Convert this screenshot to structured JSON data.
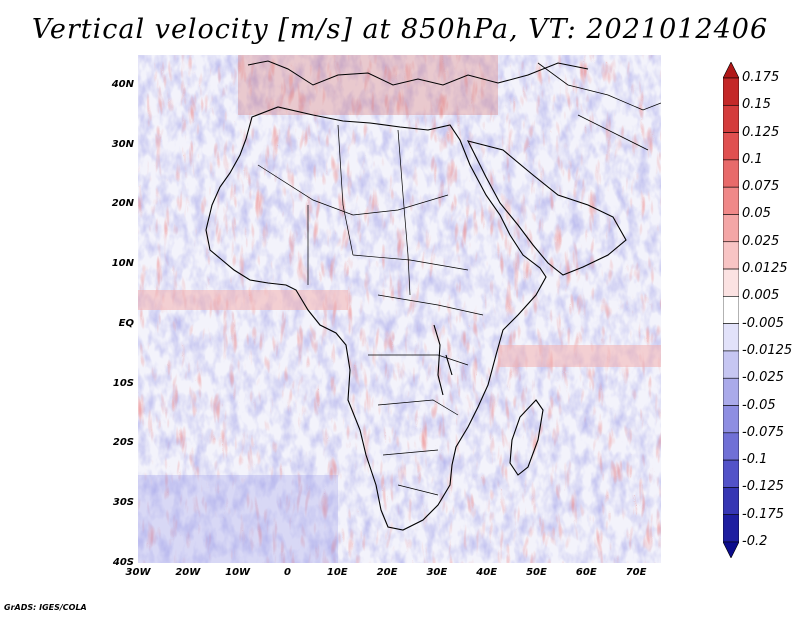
{
  "title": "Vertical velocity [m/s] at 850hPa, VT: 2021012406",
  "footer": "GrADS: IGES/COLA",
  "map": {
    "lon_range": [
      -30,
      75
    ],
    "lat_range": [
      -40,
      45
    ],
    "lat_ticks": [
      {
        "lat": 40,
        "label": "40N"
      },
      {
        "lat": 30,
        "label": "30N"
      },
      {
        "lat": 20,
        "label": "20N"
      },
      {
        "lat": 10,
        "label": "10N"
      },
      {
        "lat": 0,
        "label": "EQ"
      },
      {
        "lat": -10,
        "label": "10S"
      },
      {
        "lat": -20,
        "label": "20S"
      },
      {
        "lat": -30,
        "label": "30S"
      },
      {
        "lat": -40,
        "label": "40S"
      }
    ],
    "lon_ticks": [
      {
        "lon": -30,
        "label": "30W"
      },
      {
        "lon": -20,
        "label": "20W"
      },
      {
        "lon": -10,
        "label": "10W"
      },
      {
        "lon": 0,
        "label": "0"
      },
      {
        "lon": 10,
        "label": "10E"
      },
      {
        "lon": 20,
        "label": "20E"
      },
      {
        "lon": 30,
        "label": "30E"
      },
      {
        "lon": 40,
        "label": "40E"
      },
      {
        "lon": 50,
        "label": "50E"
      },
      {
        "lon": 60,
        "label": "60E"
      },
      {
        "lon": 70,
        "label": "70E"
      }
    ]
  },
  "colorbar": {
    "labels": [
      "0.175",
      "0.15",
      "0.125",
      "0.1",
      "0.075",
      "0.05",
      "0.025",
      "0.0125",
      "0.005",
      "-0.005",
      "-0.0125",
      "-0.025",
      "-0.05",
      "-0.075",
      "-0.1",
      "-0.125",
      "-0.175",
      "-0.2"
    ],
    "colors": [
      "#b01818",
      "#c42828",
      "#d43c3c",
      "#e05050",
      "#e86a6a",
      "#f08888",
      "#f4a6a6",
      "#f8c4c4",
      "#fbe2e2",
      "#ffffff",
      "#e2e2fa",
      "#c6c6f2",
      "#aaaaea",
      "#8e8ee2",
      "#7070d6",
      "#5252c8",
      "#3636b4",
      "#1e1ea0",
      "#0c0c8c"
    ]
  }
}
